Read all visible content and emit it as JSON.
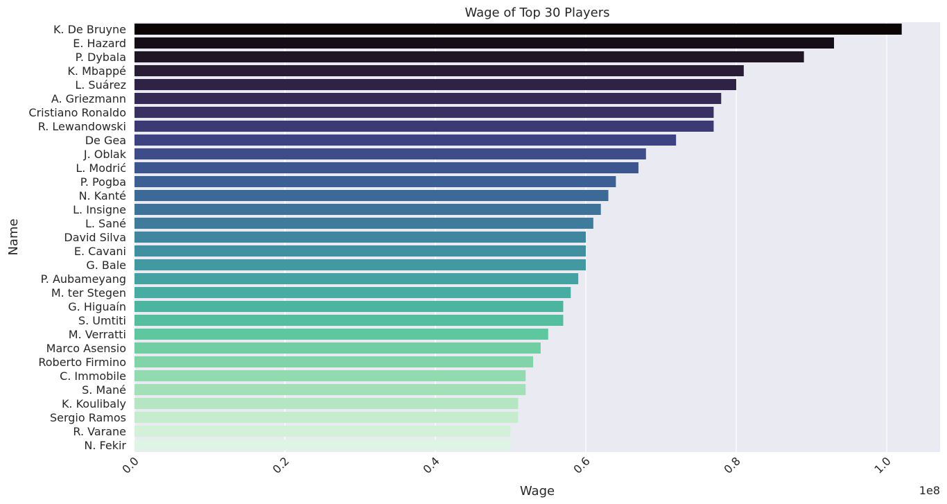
{
  "chart_data": {
    "type": "bar",
    "orientation": "horizontal",
    "title": "Wage of Top 30 Players",
    "xlabel": "Wage",
    "ylabel": "Name",
    "x_offset_text": "1e8",
    "xlim": [
      0,
      1.071
    ],
    "xticks": [
      0.0,
      0.2,
      0.4,
      0.6,
      0.8,
      1.0
    ],
    "xtick_labels": [
      "0.0",
      "0.2",
      "0.4",
      "0.6",
      "0.8",
      "1.0"
    ],
    "value_unit": "1e8",
    "grid": true,
    "categories": [
      "K. De Bruyne",
      "E. Hazard",
      "P. Dybala",
      "K. Mbappé",
      "L. Suárez",
      "A. Griezmann",
      "Cristiano Ronaldo",
      "R. Lewandowski",
      "De Gea",
      "J. Oblak",
      "L. Modrić",
      "P. Pogba",
      "N. Kanté",
      "L. Insigne",
      "L. Sané",
      "David Silva",
      "E. Cavani",
      "G. Bale",
      "P. Aubameyang",
      "M. ter Stegen",
      "G. Higuaín",
      "S. Umtiti",
      "M. Verratti",
      "Marco Asensio",
      "Roberto Firmino",
      "C. Immobile",
      "S. Mané",
      "K. Koulibaly",
      "Sergio Ramos",
      "R. Varane",
      "N. Fekir"
    ],
    "values": [
      1.02,
      0.93,
      0.89,
      0.81,
      0.8,
      0.78,
      0.77,
      0.77,
      0.72,
      0.68,
      0.67,
      0.64,
      0.63,
      0.62,
      0.61,
      0.6,
      0.6,
      0.6,
      0.59,
      0.58,
      0.57,
      0.57,
      0.55,
      0.54,
      0.53,
      0.52,
      0.52,
      0.51,
      0.51,
      0.5,
      0.5
    ],
    "palette": "mako",
    "colors": [
      "#0b0405",
      "#150e16",
      "#1f1525",
      "#281d35",
      "#2e2344",
      "#342a53",
      "#383162",
      "#3b3a72",
      "#3d4380",
      "#3e4c8a",
      "#3e5690",
      "#3d6094",
      "#3d6997",
      "#3e7399",
      "#3f7c9c",
      "#40869e",
      "#4190a0",
      "#4299a1",
      "#44a3a2",
      "#47aca1",
      "#4cb5a0",
      "#54be9f",
      "#5fc79f",
      "#70cea2",
      "#80d4a8",
      "#92daaf",
      "#a3e0b8",
      "#b4e6c2",
      "#c4eccd",
      "#d3f1d9",
      "#def5e5"
    ],
    "background_color": "#eaeaf2",
    "grid_color": "#ffffff",
    "text_color": "#262626"
  }
}
